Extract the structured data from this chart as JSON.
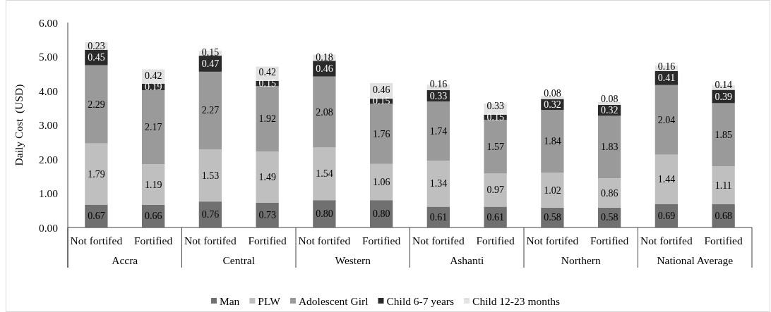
{
  "chart_data": {
    "type": "bar",
    "stacked": true,
    "ylabel": "Daily Cost  (USD)",
    "categories": [
      "Not fortifed",
      "Fortified",
      "Not fortifed",
      "Fortified",
      "Not fortifed",
      "Fortified",
      "Not fortifed",
      "Fortified",
      "Not fortifed",
      "Fortified",
      "Not fortifed",
      "Fortified"
    ],
    "annotations": [
      "Accra",
      "Central",
      "Western",
      "Ashanti",
      "Northern",
      "National Average"
    ],
    "ylim": [
      0,
      6
    ],
    "yticks": [
      {
        "value": 0,
        "label": "0.00"
      },
      {
        "value": 1,
        "label": "1.00"
      },
      {
        "value": 2,
        "label": "2.00"
      },
      {
        "value": 3,
        "label": "3.00"
      },
      {
        "value": 4,
        "label": "4.00"
      },
      {
        "value": 5,
        "label": "5.00"
      },
      {
        "value": 6,
        "label": "6.00"
      }
    ],
    "legend": "bottom",
    "series": [
      {
        "name": "Man",
        "color": "#707070",
        "values": [
          0.67,
          0.66,
          0.76,
          0.73,
          0.8,
          0.8,
          0.61,
          0.61,
          0.58,
          0.58,
          0.69,
          0.68
        ],
        "value_labels": [
          "0.67",
          "0.66",
          "0.76",
          "0.73",
          "0.80",
          "0.80",
          "0.61",
          "0.61",
          "0.58",
          "0.58",
          "0.69",
          "0.68"
        ]
      },
      {
        "name": "PLW",
        "color": "#bfbfbf",
        "values": [
          1.79,
          1.19,
          1.53,
          1.49,
          1.54,
          1.06,
          1.34,
          0.97,
          1.02,
          0.86,
          1.44,
          1.11
        ],
        "value_labels": [
          "1.79",
          "1.19",
          "1.53",
          "1.49",
          "1.54",
          "1.06",
          "1.34",
          "0.97",
          "1.02",
          "0.86",
          "1.44",
          "1.11"
        ]
      },
      {
        "name": "Adolescent Girl",
        "color": "#9a9a9a",
        "values": [
          2.29,
          2.17,
          2.27,
          1.92,
          2.08,
          1.76,
          1.74,
          1.57,
          1.84,
          1.83,
          2.04,
          1.85
        ],
        "value_labels": [
          "2.29",
          "2.17",
          "2.27",
          "1.92",
          "2.08",
          "1.76",
          "1.74",
          "1.57",
          "1.84",
          "1.83",
          "2.04",
          "1.85"
        ]
      },
      {
        "name": "Child 6-7 years",
        "color": "#2a2a2a",
        "values": [
          0.45,
          0.19,
          0.47,
          0.15,
          0.46,
          0.15,
          0.33,
          0.15,
          0.32,
          0.32,
          0.41,
          0.39
        ],
        "value_labels": [
          "0.45",
          "0.19",
          "0.47",
          "0.15",
          "0.46",
          "0.15",
          "0.33",
          "0.15",
          "0.32",
          "0.32",
          "0.41",
          "0.39"
        ]
      },
      {
        "name": "Child 12-23 months",
        "color": "#e2e2e2",
        "values": [
          0.23,
          0.42,
          0.15,
          0.42,
          0.18,
          0.46,
          0.16,
          0.33,
          0.08,
          0.08,
          0.16,
          0.14
        ],
        "value_labels": [
          "0.23",
          "0.42",
          "0.15",
          "0.42",
          "0.18",
          "0.46",
          "0.16",
          "0.33",
          "0.08",
          "0.08",
          "0.16",
          "0.14"
        ]
      }
    ]
  }
}
